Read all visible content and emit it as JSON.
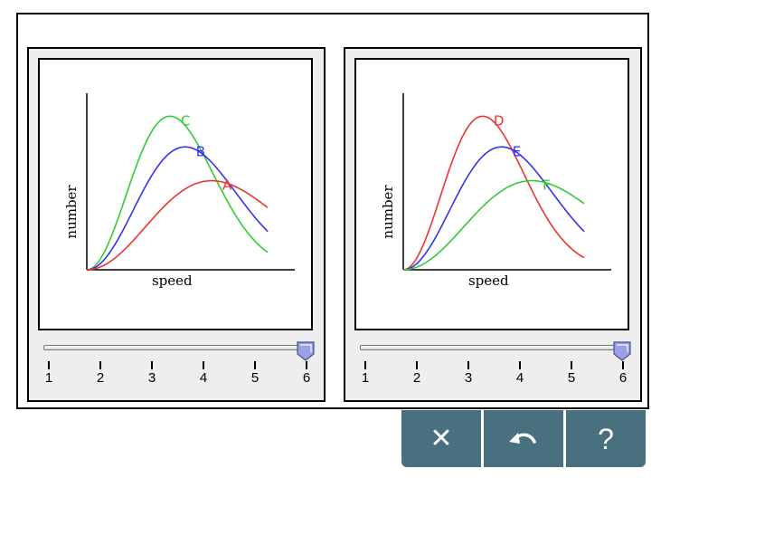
{
  "panels": [
    {
      "ylabel": "number",
      "xlabel": "speed",
      "slider": {
        "value": 6,
        "min": 1,
        "max": 6
      },
      "tick_labels": [
        "1",
        "2",
        "3",
        "4",
        "5",
        "6"
      ],
      "curves": [
        {
          "label": "C",
          "color": "#33cc33",
          "peak_speed": 2.2,
          "peak_height": 1.0
        },
        {
          "label": "B",
          "color": "#3333ee",
          "peak_speed": 2.6,
          "peak_height": 0.8
        },
        {
          "label": "A",
          "color": "#ee3333",
          "peak_speed": 3.3,
          "peak_height": 0.58
        }
      ]
    },
    {
      "ylabel": "number",
      "xlabel": "speed",
      "slider": {
        "value": 6,
        "min": 1,
        "max": 6
      },
      "tick_labels": [
        "1",
        "2",
        "3",
        "4",
        "5",
        "6"
      ],
      "curves": [
        {
          "label": "D",
          "color": "#ee3333",
          "peak_speed": 2.1,
          "peak_height": 1.0
        },
        {
          "label": "E",
          "color": "#3333ee",
          "peak_speed": 2.6,
          "peak_height": 0.8
        },
        {
          "label": "F",
          "color": "#33cc33",
          "peak_speed": 3.4,
          "peak_height": 0.58
        }
      ]
    }
  ],
  "toolbar": {
    "close_glyph": "✕",
    "undo_icon": "undo-icon",
    "help_glyph": "?"
  }
}
